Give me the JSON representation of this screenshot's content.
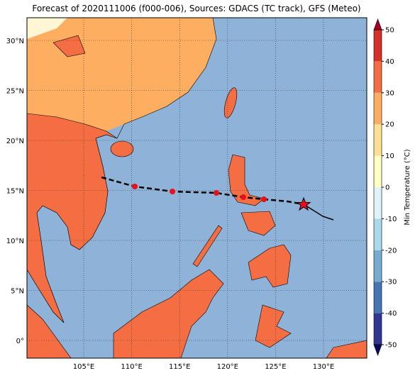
{
  "title": "Forecast of 2020111006 (f000-006), Sources: GDACS (TC track), GFS (Meteo)",
  "map": {
    "lat_labels": [
      "30°N",
      "25°N",
      "20°N",
      "15°N",
      "10°N",
      "5°N",
      "0°"
    ],
    "lon_labels": [
      "105°E",
      "110°E",
      "115°E",
      "120°E",
      "125°E",
      "130°E"
    ]
  },
  "colorbar": {
    "label": "Min Temperature (°C)",
    "lim": [
      -50,
      50
    ],
    "ticks": [
      -50,
      -40,
      -30,
      -20,
      -10,
      0,
      10,
      20,
      30,
      40,
      50
    ],
    "colors": [
      "#313695",
      "#4575b4",
      "#74add1",
      "#abd9e9",
      "#e0f3f8",
      "#ffffbf",
      "#fee090",
      "#fdae61",
      "#f46d43",
      "#d73027"
    ],
    "under_color": "#0b0b5e",
    "over_color": "#a50026"
  }
}
